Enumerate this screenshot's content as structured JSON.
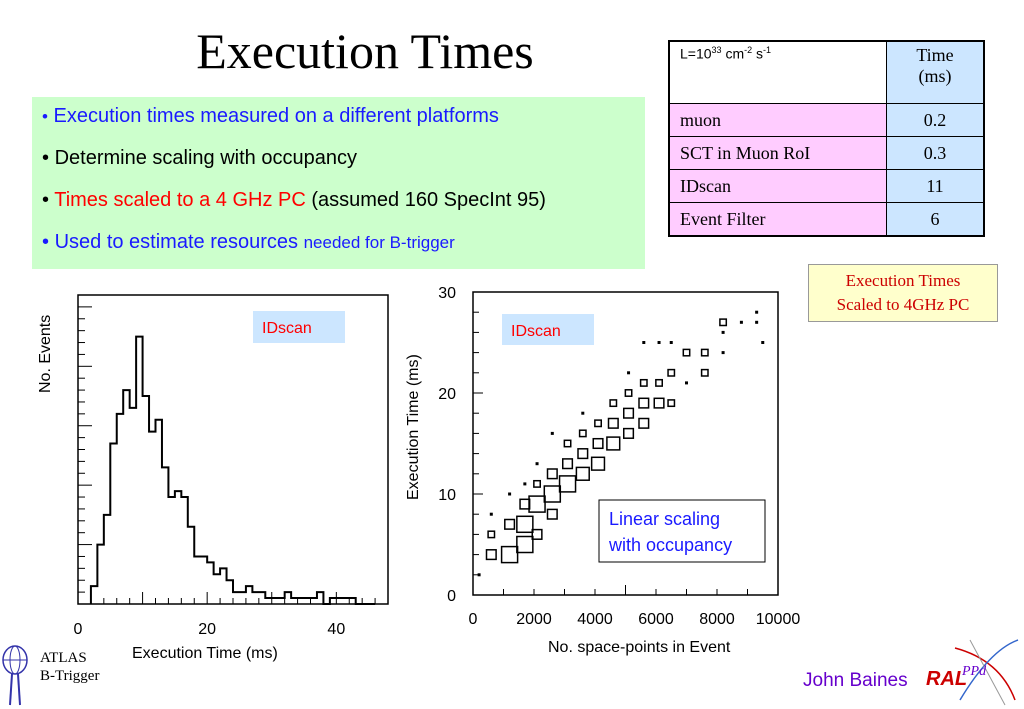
{
  "title": "Execution Times",
  "bullets": {
    "b1": "Execution times measured on a different  platforms",
    "b2": "Determine scaling with occupancy",
    "b3_red": "Times scaled to a 4 GHz PC",
    "b3_black": "(assumed 160 SpecInt 95)",
    "b4_main": "Used to estimate resources",
    "b4_small": "needed for B-trigger",
    "bullet_char": "•"
  },
  "table": {
    "head_left": {
      "base": "L=10",
      "exp1": "33",
      "unit1": " cm",
      "exp2": "-2",
      "unit2": " s",
      "exp3": "-1"
    },
    "head_right": {
      "line1": "Time",
      "line2": "(ms)"
    },
    "rows": [
      {
        "label": "muon",
        "value": "0.2"
      },
      {
        "label": "SCT in Muon RoI",
        "value": "0.3"
      },
      {
        "label": "IDscan",
        "value": "11"
      },
      {
        "label": "Event Filter",
        "value": "6"
      }
    ]
  },
  "note": {
    "line1": "Execution Times",
    "line2": "Scaled to 4GHz PC"
  },
  "author": "John Baines",
  "logo": {
    "ral": "RAL",
    "ppd": "PPd"
  },
  "atlas": {
    "line1": "ATLAS",
    "line2": "B-Trigger"
  },
  "colors": {
    "bullet_box": "#ccffcc",
    "table_left": "#ffccff",
    "table_right": "#cce6ff",
    "note_box": "#ffffcc",
    "label_box": "#cce6ff",
    "blue_text": "#1a1aff",
    "red_text": "#ff0000"
  },
  "chart_data": [
    {
      "type": "histogram",
      "label_box": "IDscan",
      "xlabel": "Execution Time (ms)",
      "ylabel": "No. Events",
      "xlim": [
        0,
        48
      ],
      "x_ticks": [
        "0",
        "20",
        "40"
      ],
      "bin_width": 1,
      "bins_start": 2,
      "values": [
        3,
        10,
        15,
        27,
        32,
        36,
        33,
        45,
        35,
        29,
        31,
        23,
        18,
        19,
        18,
        13,
        8,
        8,
        7,
        5,
        6,
        4,
        2,
        2,
        3,
        2,
        2,
        1,
        1,
        1,
        2,
        1,
        1,
        1,
        1,
        2,
        0,
        1,
        1,
        1,
        1,
        0,
        0,
        0
      ],
      "ylim": [
        0,
        52
      ],
      "yaxis_numbers": false
    },
    {
      "type": "scatter",
      "label_box": "IDscan",
      "annotation": [
        "Linear scaling",
        "with occupancy"
      ],
      "xlabel": "No. space-points in Event",
      "ylabel": "Execution Time (ms)",
      "xlim": [
        0,
        10000
      ],
      "ylim": [
        0,
        30
      ],
      "x_ticks": [
        "0",
        "2000",
        "4000",
        "6000",
        "8000",
        "10000"
      ],
      "y_ticks": [
        "0",
        "10",
        "20",
        "30"
      ],
      "points": [
        {
          "x": 200,
          "y": 2,
          "w": 1
        },
        {
          "x": 600,
          "y": 4,
          "w": 3
        },
        {
          "x": 600,
          "y": 6,
          "w": 2
        },
        {
          "x": 600,
          "y": 8,
          "w": 1
        },
        {
          "x": 1200,
          "y": 4,
          "w": 5
        },
        {
          "x": 1200,
          "y": 7,
          "w": 3
        },
        {
          "x": 1200,
          "y": 10,
          "w": 1
        },
        {
          "x": 1700,
          "y": 5,
          "w": 5
        },
        {
          "x": 1700,
          "y": 7,
          "w": 5
        },
        {
          "x": 1700,
          "y": 9,
          "w": 3
        },
        {
          "x": 1700,
          "y": 11,
          "w": 1
        },
        {
          "x": 2100,
          "y": 6,
          "w": 3
        },
        {
          "x": 2100,
          "y": 9,
          "w": 5
        },
        {
          "x": 2100,
          "y": 11,
          "w": 2
        },
        {
          "x": 2100,
          "y": 13,
          "w": 1
        },
        {
          "x": 2600,
          "y": 8,
          "w": 3
        },
        {
          "x": 2600,
          "y": 10,
          "w": 5
        },
        {
          "x": 2600,
          "y": 12,
          "w": 3
        },
        {
          "x": 2600,
          "y": 16,
          "w": 1
        },
        {
          "x": 3100,
          "y": 11,
          "w": 5
        },
        {
          "x": 3100,
          "y": 13,
          "w": 3
        },
        {
          "x": 3100,
          "y": 15,
          "w": 2
        },
        {
          "x": 3600,
          "y": 12,
          "w": 4
        },
        {
          "x": 3600,
          "y": 14,
          "w": 3
        },
        {
          "x": 3600,
          "y": 16,
          "w": 2
        },
        {
          "x": 3600,
          "y": 18,
          "w": 1
        },
        {
          "x": 4100,
          "y": 13,
          "w": 4
        },
        {
          "x": 4100,
          "y": 15,
          "w": 3
        },
        {
          "x": 4100,
          "y": 17,
          "w": 2
        },
        {
          "x": 4600,
          "y": 15,
          "w": 4
        },
        {
          "x": 4600,
          "y": 17,
          "w": 3
        },
        {
          "x": 4600,
          "y": 19,
          "w": 2
        },
        {
          "x": 5100,
          "y": 16,
          "w": 3
        },
        {
          "x": 5100,
          "y": 18,
          "w": 3
        },
        {
          "x": 5100,
          "y": 20,
          "w": 2
        },
        {
          "x": 5100,
          "y": 22,
          "w": 1
        },
        {
          "x": 5600,
          "y": 17,
          "w": 3
        },
        {
          "x": 5600,
          "y": 19,
          "w": 3
        },
        {
          "x": 5600,
          "y": 21,
          "w": 2
        },
        {
          "x": 5600,
          "y": 25,
          "w": 1
        },
        {
          "x": 6100,
          "y": 19,
          "w": 3
        },
        {
          "x": 6100,
          "y": 21,
          "w": 2
        },
        {
          "x": 6100,
          "y": 25,
          "w": 1
        },
        {
          "x": 6500,
          "y": 19,
          "w": 2
        },
        {
          "x": 6500,
          "y": 22,
          "w": 2
        },
        {
          "x": 6500,
          "y": 25,
          "w": 1
        },
        {
          "x": 7000,
          "y": 21,
          "w": 1
        },
        {
          "x": 7000,
          "y": 24,
          "w": 2
        },
        {
          "x": 7600,
          "y": 22,
          "w": 2
        },
        {
          "x": 7600,
          "y": 24,
          "w": 2
        },
        {
          "x": 8200,
          "y": 27,
          "w": 2
        },
        {
          "x": 8200,
          "y": 24,
          "w": 1
        },
        {
          "x": 8200,
          "y": 26,
          "w": 1
        },
        {
          "x": 8800,
          "y": 27,
          "w": 1
        },
        {
          "x": 9300,
          "y": 27,
          "w": 1
        },
        {
          "x": 9300,
          "y": 28,
          "w": 1
        },
        {
          "x": 9500,
          "y": 25,
          "w": 1
        }
      ]
    }
  ]
}
